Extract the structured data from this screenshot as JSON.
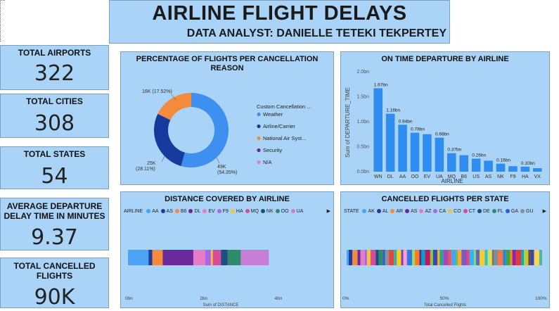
{
  "header": {
    "title": "AIRLINE FLIGHT DELAYS",
    "subtitle": "DATA ANALYST: DANIELLE TETEKI TEKPERTEY"
  },
  "kpis": [
    {
      "label": "TOTAL AIRPORTS",
      "value": "322"
    },
    {
      "label": "TOTAL CITIES",
      "value": "308"
    },
    {
      "label": "TOTAL STATES",
      "value": "54"
    },
    {
      "label": "AVERAGE DEPARTURE DELAY TIME IN MINUTES",
      "value": "9.37"
    },
    {
      "label": "TOTAL CANCELLED FLIGHTS",
      "value": "90K"
    }
  ],
  "donut": {
    "title": "PERCENTAGE OF FLIGHTS PER CANCELLATION REASON",
    "legend_title": "Custom Cancellation ...",
    "slices": [
      {
        "name": "Weather",
        "value": 49,
        "display": "49K",
        "pct": "(54.35%)",
        "color": "#3d8ff0"
      },
      {
        "name": "Airline/Carrier",
        "value": 25,
        "display": "25K",
        "pct": "(28.11%)",
        "color": "#173a9e"
      },
      {
        "name": "National Air Syst...",
        "value": 16,
        "display": "16K (17.52%)",
        "pct": "",
        "color": "#f48a3c"
      },
      {
        "name": "Security",
        "value": 0,
        "display": "",
        "pct": "",
        "color": "#6a2a9e"
      },
      {
        "name": "N/A",
        "value": 0,
        "display": "",
        "pct": "",
        "color": "#e67bc6"
      }
    ]
  },
  "bar_chart": {
    "title": "ON TIME DEPARTURE BY AIRLINE",
    "ylabel": "Sum of DEPARTURE_TIME",
    "xlabel": "AIRLINE",
    "yticks": [
      "0.0bn",
      "0.5bn",
      "1.0bn",
      "1.5bn",
      "2.0bn"
    ],
    "ymax": 2.0,
    "color": "#2f8cf0",
    "bars": [
      {
        "cat": "WN",
        "value": 1.67,
        "label": "1.67bn"
      },
      {
        "cat": "DL",
        "value": 1.16,
        "label": "1.16bn"
      },
      {
        "cat": "AA",
        "value": 0.94,
        "label": "0.94bn"
      },
      {
        "cat": "OO",
        "value": 0.78,
        "label": "0.78bn"
      },
      {
        "cat": "EV",
        "value": 0.75,
        "label": ""
      },
      {
        "cat": "UA",
        "value": 0.68,
        "label": "0.68bn"
      },
      {
        "cat": "MQ",
        "value": 0.37,
        "label": "0.37bn"
      },
      {
        "cat": "B6",
        "value": 0.33,
        "label": ""
      },
      {
        "cat": "US",
        "value": 0.26,
        "label": "0.26bn"
      },
      {
        "cat": "AS",
        "value": 0.22,
        "label": ""
      },
      {
        "cat": "NK",
        "value": 0.16,
        "label": "0.16bn"
      },
      {
        "cat": "F9",
        "value": 0.11,
        "label": ""
      },
      {
        "cat": "HA",
        "value": 0.1,
        "label": "0.10bn"
      },
      {
        "cat": "VX",
        "value": 0.07,
        "label": ""
      }
    ]
  },
  "distance": {
    "title": "DISTANCE COVERED BY AIRLINE",
    "legend_title": "AIRLINE",
    "legend": [
      {
        "name": "AA",
        "color": "#4aa3f5"
      },
      {
        "name": "AS",
        "color": "#1b3f9c"
      },
      {
        "name": "B6",
        "color": "#f48a3c"
      },
      {
        "name": "DL",
        "color": "#6a2a9e"
      },
      {
        "name": "EV",
        "color": "#e67bc6"
      },
      {
        "name": "F9",
        "color": "#a569e0"
      },
      {
        "name": "HA",
        "color": "#f2c43b"
      },
      {
        "name": "MQ",
        "color": "#d84a9a"
      },
      {
        "name": "NK",
        "color": "#1c4e80"
      },
      {
        "name": "OO",
        "color": "#2f8c6b"
      },
      {
        "name": "UA",
        "color": "#c87dd6"
      }
    ],
    "segments": [
      {
        "value": 0.55,
        "color": "#4aa3f5"
      },
      {
        "value": 0.1,
        "color": "#1b3f9c"
      },
      {
        "value": 0.28,
        "color": "#f48a3c"
      },
      {
        "value": 0.82,
        "color": "#6a2a9e"
      },
      {
        "value": 0.32,
        "color": "#e67bc6"
      },
      {
        "value": 0.15,
        "color": "#a569e0"
      },
      {
        "value": 0.05,
        "color": "#f2c43b"
      },
      {
        "value": 0.22,
        "color": "#d84a9a"
      },
      {
        "value": 0.18,
        "color": "#1c4e80"
      },
      {
        "value": 0.35,
        "color": "#2f8c6b"
      },
      {
        "value": 0.75,
        "color": "#c87dd6"
      }
    ],
    "xticks": [
      {
        "v": 0,
        "t": "0bn"
      },
      {
        "v": 2,
        "t": "2bn"
      },
      {
        "v": 4,
        "t": "4bn"
      }
    ],
    "xmax": 4.8,
    "xlabel": "Sum of DISTANCE"
  },
  "cancelled": {
    "title": "CANCELLED FLIGHTS PER STATE",
    "legend_title": "STATE",
    "legend": [
      {
        "name": "AK",
        "color": "#4aa3f5"
      },
      {
        "name": "AL",
        "color": "#1b3f9c"
      },
      {
        "name": "AR",
        "color": "#f48a3c"
      },
      {
        "name": "AS",
        "color": "#6a2a9e"
      },
      {
        "name": "AZ",
        "color": "#e67bc6"
      },
      {
        "name": "CA",
        "color": "#a569e0"
      },
      {
        "name": "CO",
        "color": "#f2c43b"
      },
      {
        "name": "CT",
        "color": "#d84a9a"
      },
      {
        "name": "DE",
        "color": "#1c4e80"
      },
      {
        "name": "FL",
        "color": "#2f8c6b"
      },
      {
        "name": "GA",
        "color": "#2e5bd8"
      },
      {
        "name": "GU",
        "color": "#8a8f98"
      }
    ],
    "segment_colors": [
      "#4aa3f5",
      "#1b3f9c",
      "#f48a3c",
      "#6a2a9e",
      "#e67bc6",
      "#a569e0",
      "#f2c43b",
      "#d84a9a",
      "#1c4e80",
      "#2f8c6b",
      "#2e5bd8",
      "#8a8f98",
      "#e04848",
      "#3ab0a0",
      "#f5d020",
      "#7b3fbf",
      "#ff9cd0",
      "#2c7be5",
      "#a3d65c",
      "#ff7a1a",
      "#5a2ca0",
      "#00a3c4",
      "#c2185b",
      "#8bc34a",
      "#3949ab",
      "#ffb300",
      "#26a69a",
      "#ab47bc",
      "#ef5350",
      "#42a5f5",
      "#66bb6a",
      "#ffa726",
      "#7e57c2",
      "#ec407a",
      "#29b6f6",
      "#9ccc65",
      "#5c6bc0",
      "#ffca28",
      "#26c6da",
      "#d4e157",
      "#8d6e63",
      "#78909c",
      "#ff7043",
      "#1e88e5",
      "#43a047",
      "#fb8c00",
      "#8e24aa",
      "#e53935",
      "#00acc1",
      "#c0ca33",
      "#6d4c41",
      "#3949ab",
      "#ffd54f",
      "#4db6ac"
    ],
    "xticks": [
      {
        "v": 0,
        "t": "0%"
      },
      {
        "v": 50,
        "t": "50%"
      },
      {
        "v": 100,
        "t": "100%"
      }
    ],
    "xlabel": "Total Cancelled Flights"
  }
}
